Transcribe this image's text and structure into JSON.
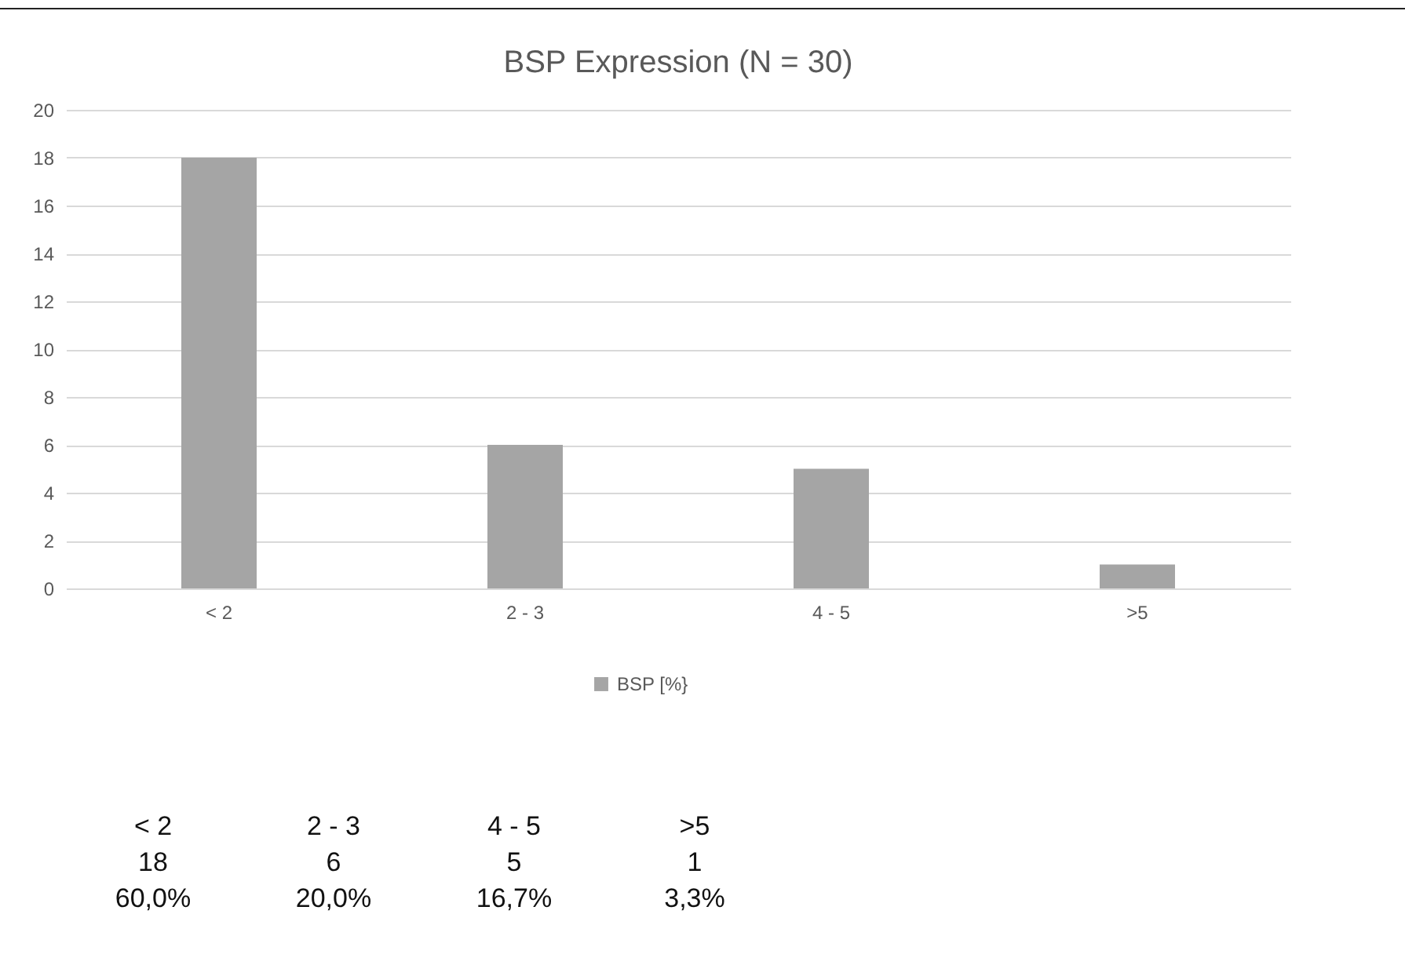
{
  "chart_data": {
    "type": "bar",
    "title": "BSP Expression (N = 30)",
    "categories": [
      "< 2",
      "2 - 3",
      "4 - 5",
      ">5"
    ],
    "series": [
      {
        "name": "BSP [%}",
        "color": "#a5a5a5",
        "values": [
          18,
          6,
          5,
          1
        ]
      }
    ],
    "ylim": [
      0,
      20
    ],
    "yticks": [
      0,
      2,
      4,
      6,
      8,
      10,
      12,
      14,
      16,
      18,
      20
    ],
    "grid": "y",
    "legend": "bottom",
    "annotations": [
      "18",
      "6",
      "5",
      "1",
      "60,0%",
      "20,0%",
      "16,7%",
      "3,3%"
    ]
  }
}
